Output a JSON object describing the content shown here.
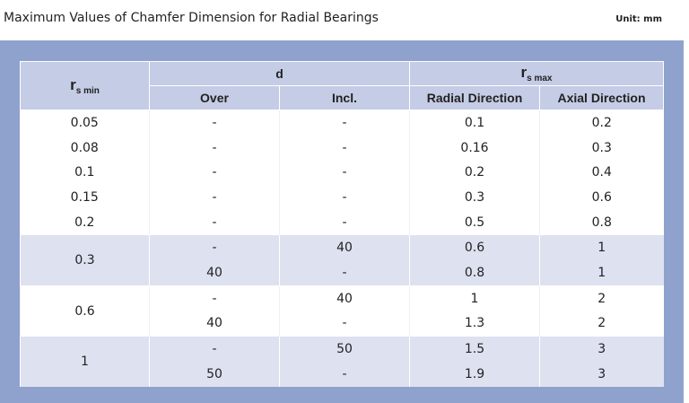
{
  "title": "Maximum Values of Chamfer Dimension for Radial Bearings",
  "unit": "Unit: mm",
  "table": {
    "header": {
      "r_symbol": "r",
      "r_min_sub": "s min",
      "d": "d",
      "r_max_symbol": "r",
      "r_max_sub": "s max",
      "over": "Over",
      "incl": "Incl.",
      "radial": "Radial Direction",
      "axial": "Axial Direction"
    },
    "groups": [
      {
        "rs_min": "0.05",
        "rows": [
          [
            "-",
            "-",
            "0.1",
            "0.2"
          ]
        ]
      },
      {
        "rs_min": "0.08",
        "rows": [
          [
            "-",
            "-",
            "0.16",
            "0.3"
          ]
        ]
      },
      {
        "rs_min": "0.1",
        "rows": [
          [
            "-",
            "-",
            "0.2",
            "0.4"
          ]
        ]
      },
      {
        "rs_min": "0.15",
        "rows": [
          [
            "-",
            "-",
            "0.3",
            "0.6"
          ]
        ]
      },
      {
        "rs_min": "0.2",
        "rows": [
          [
            "-",
            "-",
            "0.5",
            "0.8"
          ]
        ]
      },
      {
        "rs_min": "0.3",
        "rows": [
          [
            "-",
            "40",
            "0.6",
            "1"
          ],
          [
            "40",
            "-",
            "0.8",
            "1"
          ]
        ]
      },
      {
        "rs_min": "0.6",
        "rows": [
          [
            "-",
            "40",
            "1",
            "2"
          ],
          [
            "40",
            "-",
            "1.3",
            "2"
          ]
        ]
      },
      {
        "rs_min": "1",
        "rows": [
          [
            "-",
            "50",
            "1.5",
            "3"
          ],
          [
            "50",
            "-",
            "1.9",
            "3"
          ]
        ]
      }
    ]
  }
}
